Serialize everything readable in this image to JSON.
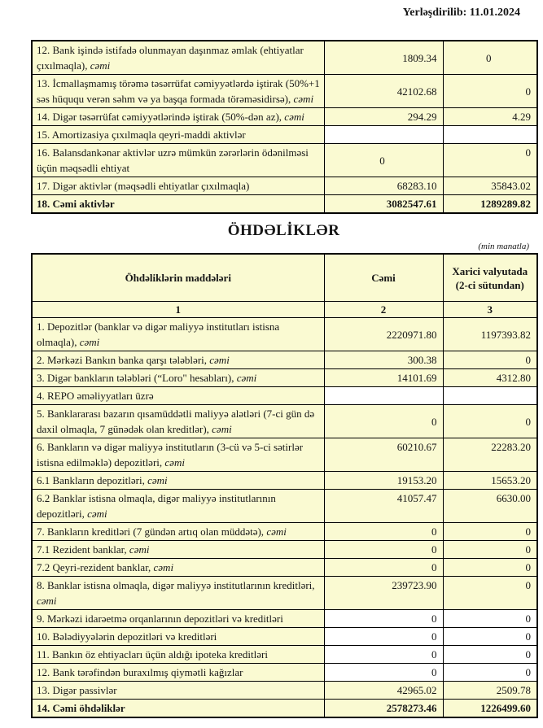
{
  "page": {
    "posted_label": "Yerləşdirilib: 11.01.2024"
  },
  "section_title": "ÖHDƏLİKLƏR",
  "unit_note": "(min manatla)",
  "colors": {
    "cell_fill": "#FAFAD2",
    "empty_cell_fill": "#FFFFFF",
    "border": "#000000",
    "text": "#161616"
  },
  "assets_table": {
    "rows": [
      {
        "label": "12. Bank işində istifadə olunmayan daşınmaz əmlak (ehtiyatlar çıxılmaqla),",
        "suffix": "cəmi",
        "v2": "1809.34",
        "v3": "0",
        "v3_center": true
      },
      {
        "label": "13. İcmallaşmamış törəmə təsərrüfat cəmiyyətlərdə iştirak (50%+1 səs hüququ verən səhm və ya başqa formada törəməsidirsə),",
        "suffix": "cəmi",
        "v2": "42102.68",
        "v3": "0"
      },
      {
        "label": "14. Digər təsərrüfat cəmiyyətlərində iştirak (50%-dən az),",
        "suffix": "cəmi",
        "v2": "294.29",
        "v3": "4.29"
      },
      {
        "label": "15. Amortizasiya çıxılmaqla qeyri-maddi aktivlər",
        "v2": "",
        "v3": "",
        "white": true
      },
      {
        "label": "16. Balansdankənar aktivlər uzrə mümkün zərərlərin ödənilməsi üçün məqsədli ehtiyat",
        "v2": "0",
        "v3": "0",
        "v2_center": true,
        "v3_top": true
      },
      {
        "label": "17. Digər aktivlər (məqsədli ehtiyatlar çıxılmaqla)",
        "v2": "68283.10",
        "v3": "35843.02"
      },
      {
        "label": "18. Cəmi aktivlər",
        "v2": "3082547.61",
        "v3": "1289289.82",
        "bold": true
      }
    ]
  },
  "liabilities_table": {
    "headers": [
      "Öhdəliklərin maddələri",
      "Cəmi",
      "Xarici valyutada (2-ci sütundan)"
    ],
    "index_row": [
      "1",
      "2",
      "3"
    ],
    "rows": [
      {
        "label": "1. Depozitlər (banklar və digər maliyyə institutları istisna olmaqla),",
        "suffix": "cəmi",
        "v2": "2220971.80",
        "v3": "1197393.82"
      },
      {
        "label": "2. Mərkəzi Bankın banka qarşı tələbləri,",
        "suffix": "cəmi",
        "v2": "300.38",
        "v3": "0"
      },
      {
        "label": "3. Digər bankların tələbləri (“Loro\" hesabları),",
        "suffix": "cəmi",
        "v2": "14101.69",
        "v3": "4312.80"
      },
      {
        "label": "4. REPO əməliyyatları  üzrə",
        "v2": "",
        "v3": "",
        "white": true
      },
      {
        "label": "5. Banklararası bazarın qısamüddətli maliyyə alətləri (7-ci gün də daxil olmaqla, 7 günədək olan kreditlər),",
        "suffix": "cəmi",
        "v2": "0",
        "v3": "0"
      },
      {
        "label": "6. Bankların və digər maliyyə institutların (3-cü və 5-ci sətirlər istisna edilməklə) depozitləri,",
        "suffix": "cəmi",
        "v2": "60210.67",
        "v3": "22283.20",
        "top": true
      },
      {
        "label": "6.1  Bankların depozitləri,",
        "suffix": "cəmi",
        "v2": "19153.20",
        "v3": "15653.20"
      },
      {
        "label": "6.2 Banklar istisna olmaqla, digər maliyyə institutlarının depozitləri,",
        "suffix": "cəmi",
        "v2": "41057.47",
        "v3": "6630.00",
        "top": true
      },
      {
        "label": "7. Bankların kreditləri (7 gündən artıq olan müddətə),",
        "suffix": "cəmi",
        "v2": "0",
        "v3": "0"
      },
      {
        "label": "7.1 Rezident banklar,",
        "suffix": "cəmi",
        "v2": "0",
        "v3": "0"
      },
      {
        "label": "7.2 Qeyri-rezident banklar,",
        "suffix": "cəmi",
        "v2": "0",
        "v3": "0"
      },
      {
        "label": "8. Banklar istisna olmaqla, digər maliyyə institutlarının kreditləri,",
        "suffix": "cəmi",
        "v2": "239723.90",
        "v3": "0",
        "top": true
      },
      {
        "label": "9. Mərkəzi idarəetmə orqanlarının depozitləri və kreditləri",
        "v2": "0",
        "v3": "0",
        "white": true
      },
      {
        "label": "10. Bələdiyyələrin depozitləri və kreditləri",
        "v2": "0",
        "v3": "0",
        "white": true
      },
      {
        "label": "11. Bankın öz ehtiyacları üçün aldığı ipoteka kreditləri",
        "v2": "0",
        "v3": "0",
        "white": true
      },
      {
        "label": "12. Bank tərəfindən buraxılmış qiymətli kağızlar",
        "v2": "0",
        "v3": "0",
        "white": true
      },
      {
        "label": "13. Digər passivlər",
        "v2": "42965.02",
        "v3": "2509.78"
      },
      {
        "label": "14. Cəmi öhdəliklər",
        "v2": "2578273.46",
        "v3": "1226499.60",
        "bold": true
      }
    ]
  }
}
